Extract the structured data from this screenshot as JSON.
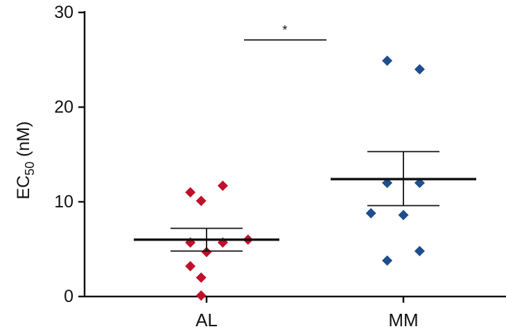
{
  "chart_data": {
    "type": "scatter",
    "title": "",
    "xlabel": "",
    "ylabel": "EC",
    "ylabel_subscript": "50",
    "ylabel_unit": " (nM)",
    "ylim": [
      0,
      30
    ],
    "yticks": [
      0,
      10,
      20,
      30
    ],
    "categories": [
      "AL",
      "MM"
    ],
    "series": [
      {
        "category": "AL",
        "color": "#c0102a",
        "marker": "diamond",
        "points": [
          {
            "offset": -0.45,
            "y": 11.0
          },
          {
            "offset": -0.15,
            "y": 10.1
          },
          {
            "offset": 0.45,
            "y": 11.7
          },
          {
            "offset": -0.45,
            "y": 5.7
          },
          {
            "offset": 0.0,
            "y": 4.7
          },
          {
            "offset": 0.45,
            "y": 5.7
          },
          {
            "offset": 1.15,
            "y": 6.0
          },
          {
            "offset": -0.45,
            "y": 3.2
          },
          {
            "offset": -0.15,
            "y": 2.0
          },
          {
            "offset": -0.15,
            "y": 0.1
          }
        ],
        "mean": 6.0,
        "sem_upper": 7.2,
        "sem_lower": 4.8
      },
      {
        "category": "MM",
        "color": "#1f4e8c",
        "marker": "diamond",
        "points": [
          {
            "offset": -0.45,
            "y": 24.9
          },
          {
            "offset": 0.45,
            "y": 24.0
          },
          {
            "offset": -0.45,
            "y": 12.0
          },
          {
            "offset": 0.45,
            "y": 12.0
          },
          {
            "offset": -0.9,
            "y": 8.8
          },
          {
            "offset": 0.0,
            "y": 8.6
          },
          {
            "offset": -0.45,
            "y": 3.8
          },
          {
            "offset": 0.45,
            "y": 4.8
          }
        ],
        "mean": 12.4,
        "sem_upper": 15.3,
        "sem_lower": 9.6
      }
    ],
    "significance": {
      "label": "*",
      "y": 27.1
    }
  }
}
